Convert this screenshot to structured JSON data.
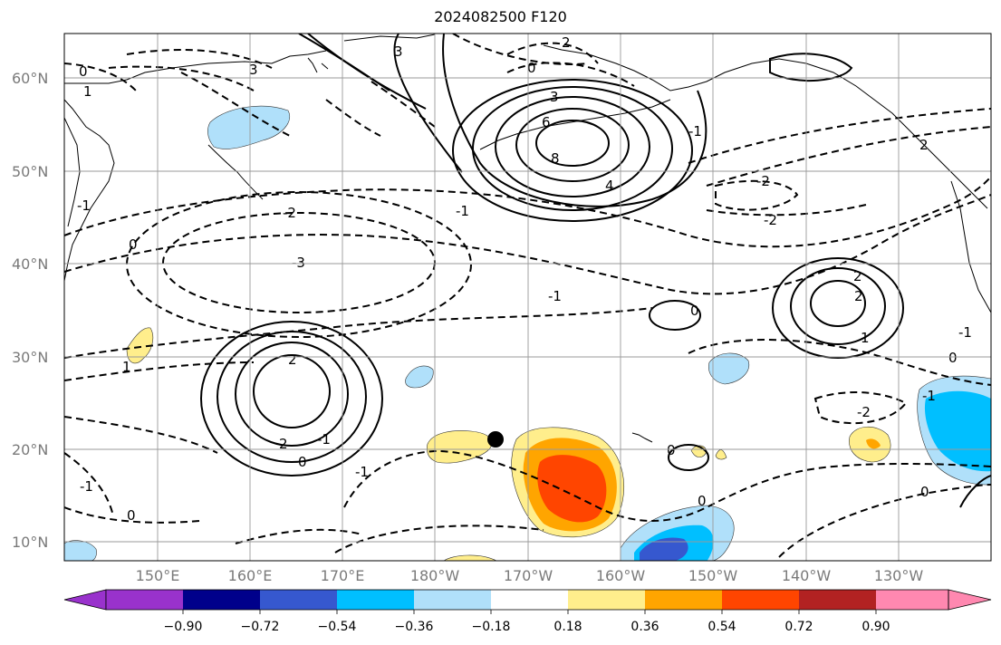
{
  "title": "2024082500 F120",
  "lat_labels": [
    "60°N",
    "50°N",
    "40°N",
    "30°N",
    "20°N",
    "10°N"
  ],
  "lon_labels": [
    "150°E",
    "160°E",
    "170°E",
    "180°W",
    "170°W",
    "160°W",
    "150°W",
    "140°W",
    "130°W"
  ],
  "colorbar": {
    "ticks": [
      "−0.90",
      "−0.72",
      "−0.54",
      "−0.36",
      "−0.18",
      "0.18",
      "0.36",
      "0.54",
      "0.72",
      "0.90"
    ],
    "colors": [
      "#9932cc",
      "#00008b",
      "#3658cf",
      "#00bfff",
      "#b0e0fa",
      "#ffffff",
      "#ffee8c",
      "#ffa500",
      "#ff4500",
      "#b22222",
      "#ff88b0"
    ]
  },
  "contour_labels": [
    "0",
    "1",
    "3",
    "3",
    "2",
    "0",
    "3",
    "6",
    "8",
    "4",
    "-1",
    "2",
    "-2",
    "-2",
    "-1",
    "-3",
    "-2",
    "-1",
    "-1",
    "0",
    "2",
    "2",
    "2",
    "1",
    "0",
    "-1",
    "0",
    "-1",
    "2",
    "-1",
    "0",
    "-2",
    "1",
    "-1",
    "0",
    "0",
    "-1",
    "0",
    "0"
  ],
  "marker": "black-dot"
}
